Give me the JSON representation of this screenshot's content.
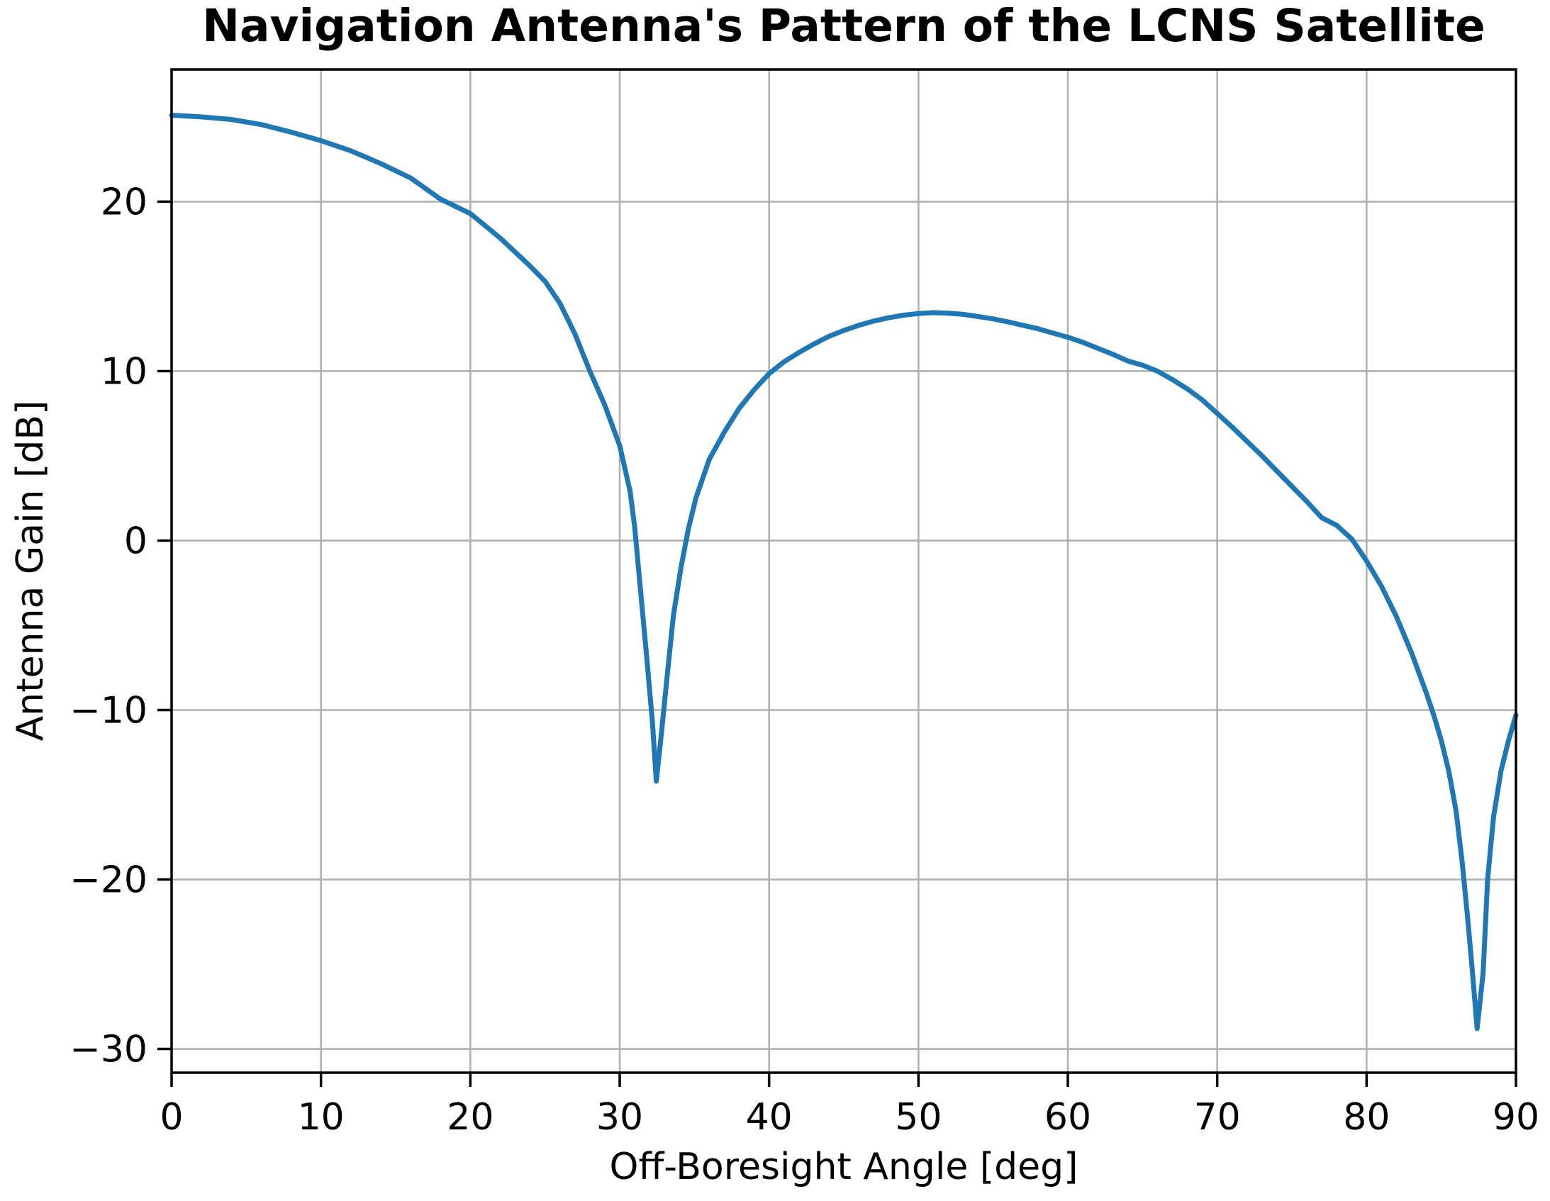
{
  "figure": {
    "title": "Navigation Antenna's Pattern of the LCNS Satellite"
  },
  "chart_data": {
    "type": "line",
    "title": "Navigation Antenna's Pattern of the LCNS Satellite",
    "xlabel": "Off-Boresight Angle [deg]",
    "ylabel": "Antenna Gain [dB]",
    "xlim": [
      0,
      90
    ],
    "ylim": [
      -31.4,
      27.8
    ],
    "xticks": [
      0,
      10,
      20,
      30,
      40,
      50,
      60,
      70,
      80,
      90
    ],
    "yticks": [
      -30,
      -20,
      -10,
      0,
      10,
      20
    ],
    "grid": true,
    "grid_color": "#b0b0b0",
    "spine_color": "#000000",
    "line_color": "#1f77b4",
    "line_width": 7,
    "background": "#ffffff",
    "legend": "none",
    "series": [
      {
        "name": "antenna_gain_dB",
        "points": [
          [
            0,
            25.1
          ],
          [
            2,
            25.0
          ],
          [
            4,
            24.85
          ],
          [
            6,
            24.55
          ],
          [
            8,
            24.1
          ],
          [
            10,
            23.6
          ],
          [
            12,
            23.0
          ],
          [
            14,
            22.25
          ],
          [
            16,
            21.4
          ],
          [
            18,
            20.15
          ],
          [
            20,
            19.3
          ],
          [
            22,
            17.85
          ],
          [
            24,
            16.2
          ],
          [
            25,
            15.3
          ],
          [
            26,
            14.0
          ],
          [
            27,
            12.2
          ],
          [
            28,
            10.0
          ],
          [
            29,
            8.0
          ],
          [
            30,
            5.6
          ],
          [
            30.7,
            2.9
          ],
          [
            31.0,
            0.8
          ],
          [
            31.4,
            -3.0
          ],
          [
            31.8,
            -6.8
          ],
          [
            32.2,
            -10.8
          ],
          [
            32.45,
            -14.2
          ],
          [
            32.8,
            -11.3
          ],
          [
            33.2,
            -7.8
          ],
          [
            33.6,
            -4.4
          ],
          [
            34.1,
            -1.6
          ],
          [
            34.6,
            0.7
          ],
          [
            35.1,
            2.5
          ],
          [
            36,
            4.8
          ],
          [
            37,
            6.4
          ],
          [
            38,
            7.8
          ],
          [
            39,
            8.9
          ],
          [
            40,
            9.85
          ],
          [
            41,
            10.55
          ],
          [
            42,
            11.1
          ],
          [
            43,
            11.6
          ],
          [
            44,
            12.05
          ],
          [
            45,
            12.4
          ],
          [
            46,
            12.7
          ],
          [
            47,
            12.95
          ],
          [
            48,
            13.15
          ],
          [
            49,
            13.3
          ],
          [
            50,
            13.4
          ],
          [
            51,
            13.45
          ],
          [
            52,
            13.42
          ],
          [
            53,
            13.35
          ],
          [
            54,
            13.22
          ],
          [
            55,
            13.08
          ],
          [
            56,
            12.9
          ],
          [
            57,
            12.7
          ],
          [
            58,
            12.5
          ],
          [
            59,
            12.25
          ],
          [
            60,
            12.0
          ],
          [
            61,
            11.7
          ],
          [
            62,
            11.35
          ],
          [
            63,
            11.0
          ],
          [
            64,
            10.6
          ],
          [
            65,
            10.35
          ],
          [
            66,
            10.0
          ],
          [
            67,
            9.5
          ],
          [
            68,
            8.95
          ],
          [
            69,
            8.3
          ],
          [
            70,
            7.5
          ],
          [
            71,
            6.7
          ],
          [
            72,
            5.85
          ],
          [
            73,
            5.0
          ],
          [
            74,
            4.1
          ],
          [
            75,
            3.2
          ],
          [
            76,
            2.3
          ],
          [
            77,
            1.35
          ],
          [
            78,
            0.9
          ],
          [
            79,
            0.1
          ],
          [
            80,
            -1.2
          ],
          [
            81,
            -2.7
          ],
          [
            82,
            -4.5
          ],
          [
            83,
            -6.6
          ],
          [
            84,
            -9.0
          ],
          [
            84.5,
            -10.3
          ],
          [
            85,
            -11.8
          ],
          [
            85.5,
            -13.6
          ],
          [
            86,
            -16.0
          ],
          [
            86.4,
            -19.0
          ],
          [
            86.8,
            -22.6
          ],
          [
            87.1,
            -25.6
          ],
          [
            87.4,
            -28.8
          ],
          [
            87.8,
            -25.5
          ],
          [
            88.1,
            -20.0
          ],
          [
            88.5,
            -16.3
          ],
          [
            89,
            -13.6
          ],
          [
            89.5,
            -11.8
          ],
          [
            90,
            -10.3
          ]
        ]
      }
    ],
    "features": {
      "boresight_gain_dB": 25.1,
      "first_null": {
        "angle_deg": 32.5,
        "gain_dB": -14.2
      },
      "sidelobe_peak": {
        "angle_deg": 51,
        "gain_dB": 13.4
      },
      "second_null": {
        "angle_deg": 87.4,
        "gain_dB": -28.8
      },
      "gain_at_90deg_dB": -10.3
    }
  }
}
